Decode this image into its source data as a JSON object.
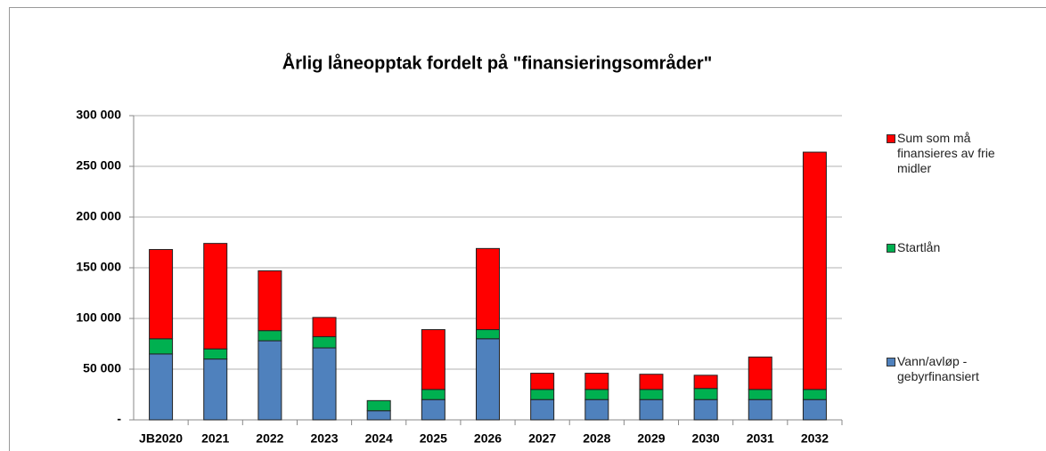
{
  "chart_data": {
    "type": "stacked_bar",
    "title": "Årlig låneopptak fordelt på  \"finansieringsområder\"",
    "categories": [
      "JB2020",
      "2021",
      "2022",
      "2023",
      "2024",
      "2025",
      "2026",
      "2027",
      "2028",
      "2029",
      "2030",
      "2031",
      "2032"
    ],
    "series": [
      {
        "name": "Vann/avløp - gebyrfinansiert",
        "color": "#4f81bd",
        "values": [
          65000,
          60000,
          78000,
          71000,
          9000,
          20000,
          80000,
          20000,
          20000,
          20000,
          20000,
          20000,
          20000
        ]
      },
      {
        "name": "Startlån",
        "color": "#00b050",
        "values": [
          15000,
          10000,
          10000,
          11000,
          10000,
          10000,
          9000,
          10000,
          10000,
          10000,
          11000,
          10000,
          10000
        ]
      },
      {
        "name": "Sum som må finansieres av frie midler",
        "color": "#ff0000",
        "values": [
          88000,
          104000,
          59000,
          19000,
          0,
          59000,
          80000,
          16000,
          16000,
          15000,
          13000,
          32000,
          234000
        ]
      }
    ],
    "ylim": [
      0,
      300000
    ],
    "yticks": [
      {
        "value": 0,
        "label": "-"
      },
      {
        "value": 50000,
        "label": "50 000"
      },
      {
        "value": 100000,
        "label": "100 000"
      },
      {
        "value": 150000,
        "label": "150 000"
      },
      {
        "value": 200000,
        "label": "200 000"
      },
      {
        "value": 250000,
        "label": "250 000"
      },
      {
        "value": 300000,
        "label": "300 000"
      }
    ],
    "grid": true,
    "legend": "right"
  }
}
